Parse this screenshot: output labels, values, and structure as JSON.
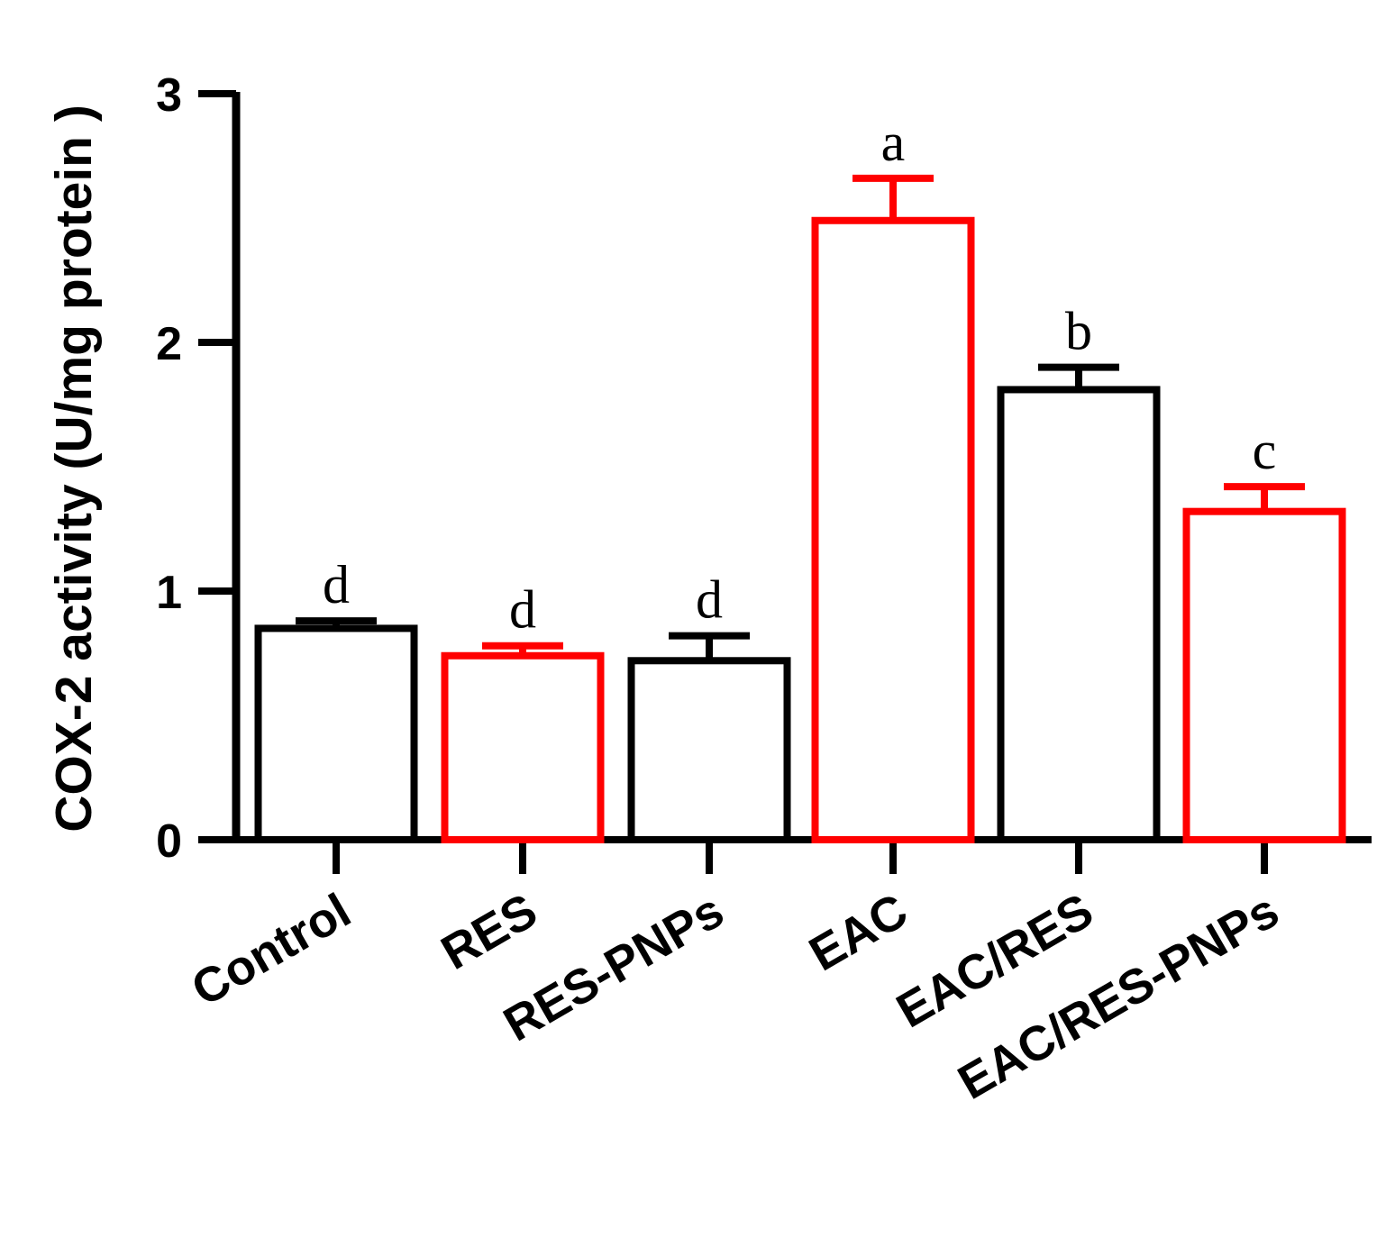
{
  "chart_data": {
    "type": "bar",
    "ylabel": "COX-2 activity (U/mg protein )",
    "ylim": [
      0,
      3
    ],
    "yticks": [
      "0",
      "1",
      "2",
      "3"
    ],
    "categories": [
      "Control",
      "RES",
      "RES-PNPs",
      "EAC",
      "EAC/RES",
      "EAC/RES-PNPs"
    ],
    "values": [
      0.85,
      0.74,
      0.72,
      2.49,
      1.81,
      1.32
    ],
    "errors": [
      0.03,
      0.04,
      0.1,
      0.17,
      0.09,
      0.1
    ],
    "significance_letters": [
      "d",
      "d",
      "d",
      "a",
      "b",
      "c"
    ],
    "bar_colors": [
      "#000000",
      "#ff0000",
      "#000000",
      "#ff0000",
      "#000000",
      "#ff0000"
    ],
    "bar_fill": "#ffffff",
    "axis_color": "#000000",
    "grid": false,
    "legend": "none"
  }
}
